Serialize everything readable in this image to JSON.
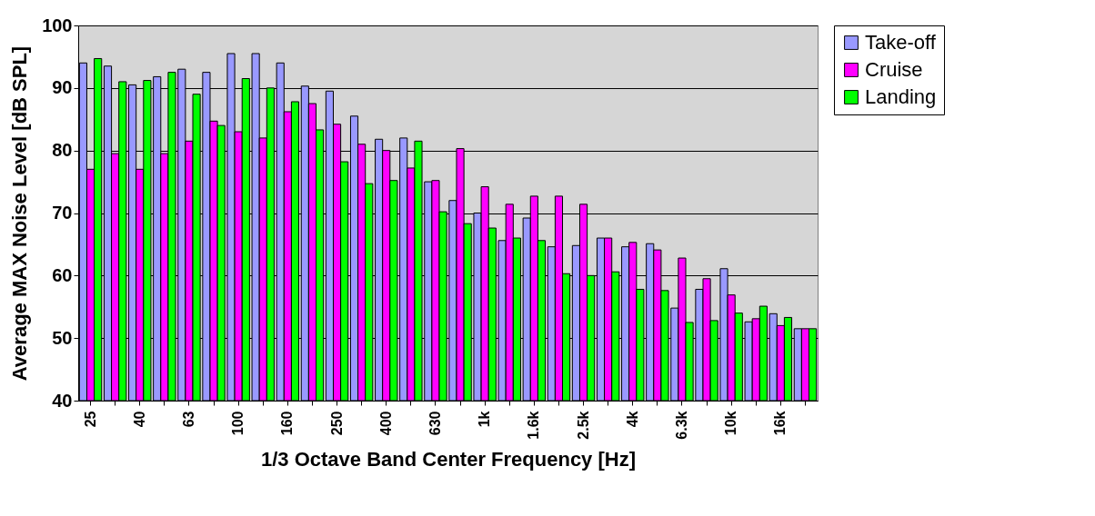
{
  "chart_data": {
    "type": "bar",
    "xlabel": "1/3 Octave Band Center Frequency [Hz]",
    "ylabel": "Average MAX Noise Level [dB SPL]",
    "categories": [
      "25",
      null,
      "40",
      null,
      "63",
      null,
      "100",
      null,
      "160",
      null,
      "250",
      null,
      "400",
      null,
      "630",
      null,
      "1k",
      null,
      "1.6k",
      null,
      "2.5k",
      null,
      "4k",
      null,
      "6.3k",
      null,
      "10k",
      null,
      "16k",
      null
    ],
    "series": [
      {
        "name": "Take-off",
        "color": "#9999ff",
        "values": [
          94,
          93.5,
          90.5,
          91.8,
          93,
          92.5,
          95.5,
          95.5,
          94,
          90.3,
          89.5,
          85.5,
          81.8,
          82,
          75,
          72,
          70,
          65.6,
          69.2,
          64.6,
          64.8,
          66,
          64.6,
          65.1,
          54.8,
          57.8,
          61.1,
          52.6,
          53.9,
          51.5
        ]
      },
      {
        "name": "Cruise",
        "color": "#ff00ff",
        "values": [
          77,
          79.5,
          77,
          79.5,
          81.5,
          84.7,
          83,
          82,
          86.2,
          87.5,
          84.2,
          81,
          80,
          77.2,
          75.2,
          80.3,
          74.2,
          71.4,
          72.7,
          72.7,
          71.4,
          66,
          65.3,
          64.1,
          62.8,
          59.5,
          56.9,
          53.1,
          52,
          51.5
        ]
      },
      {
        "name": "Landing",
        "color": "#00ff00",
        "values": [
          94.7,
          91,
          91.2,
          92.5,
          89,
          84,
          91.5,
          90,
          87.8,
          83.3,
          78.2,
          74.7,
          75.2,
          81.5,
          70.2,
          68.3,
          67.6,
          66,
          65.6,
          60.3,
          60,
          60.6,
          57.8,
          57.6,
          52.5,
          52.8,
          54,
          55.1,
          53.3,
          51.5
        ]
      }
    ],
    "ylim": [
      40,
      100
    ],
    "yticks": [
      40,
      50,
      60,
      70,
      80,
      90,
      100
    ],
    "grid": "y",
    "legend": "right"
  }
}
